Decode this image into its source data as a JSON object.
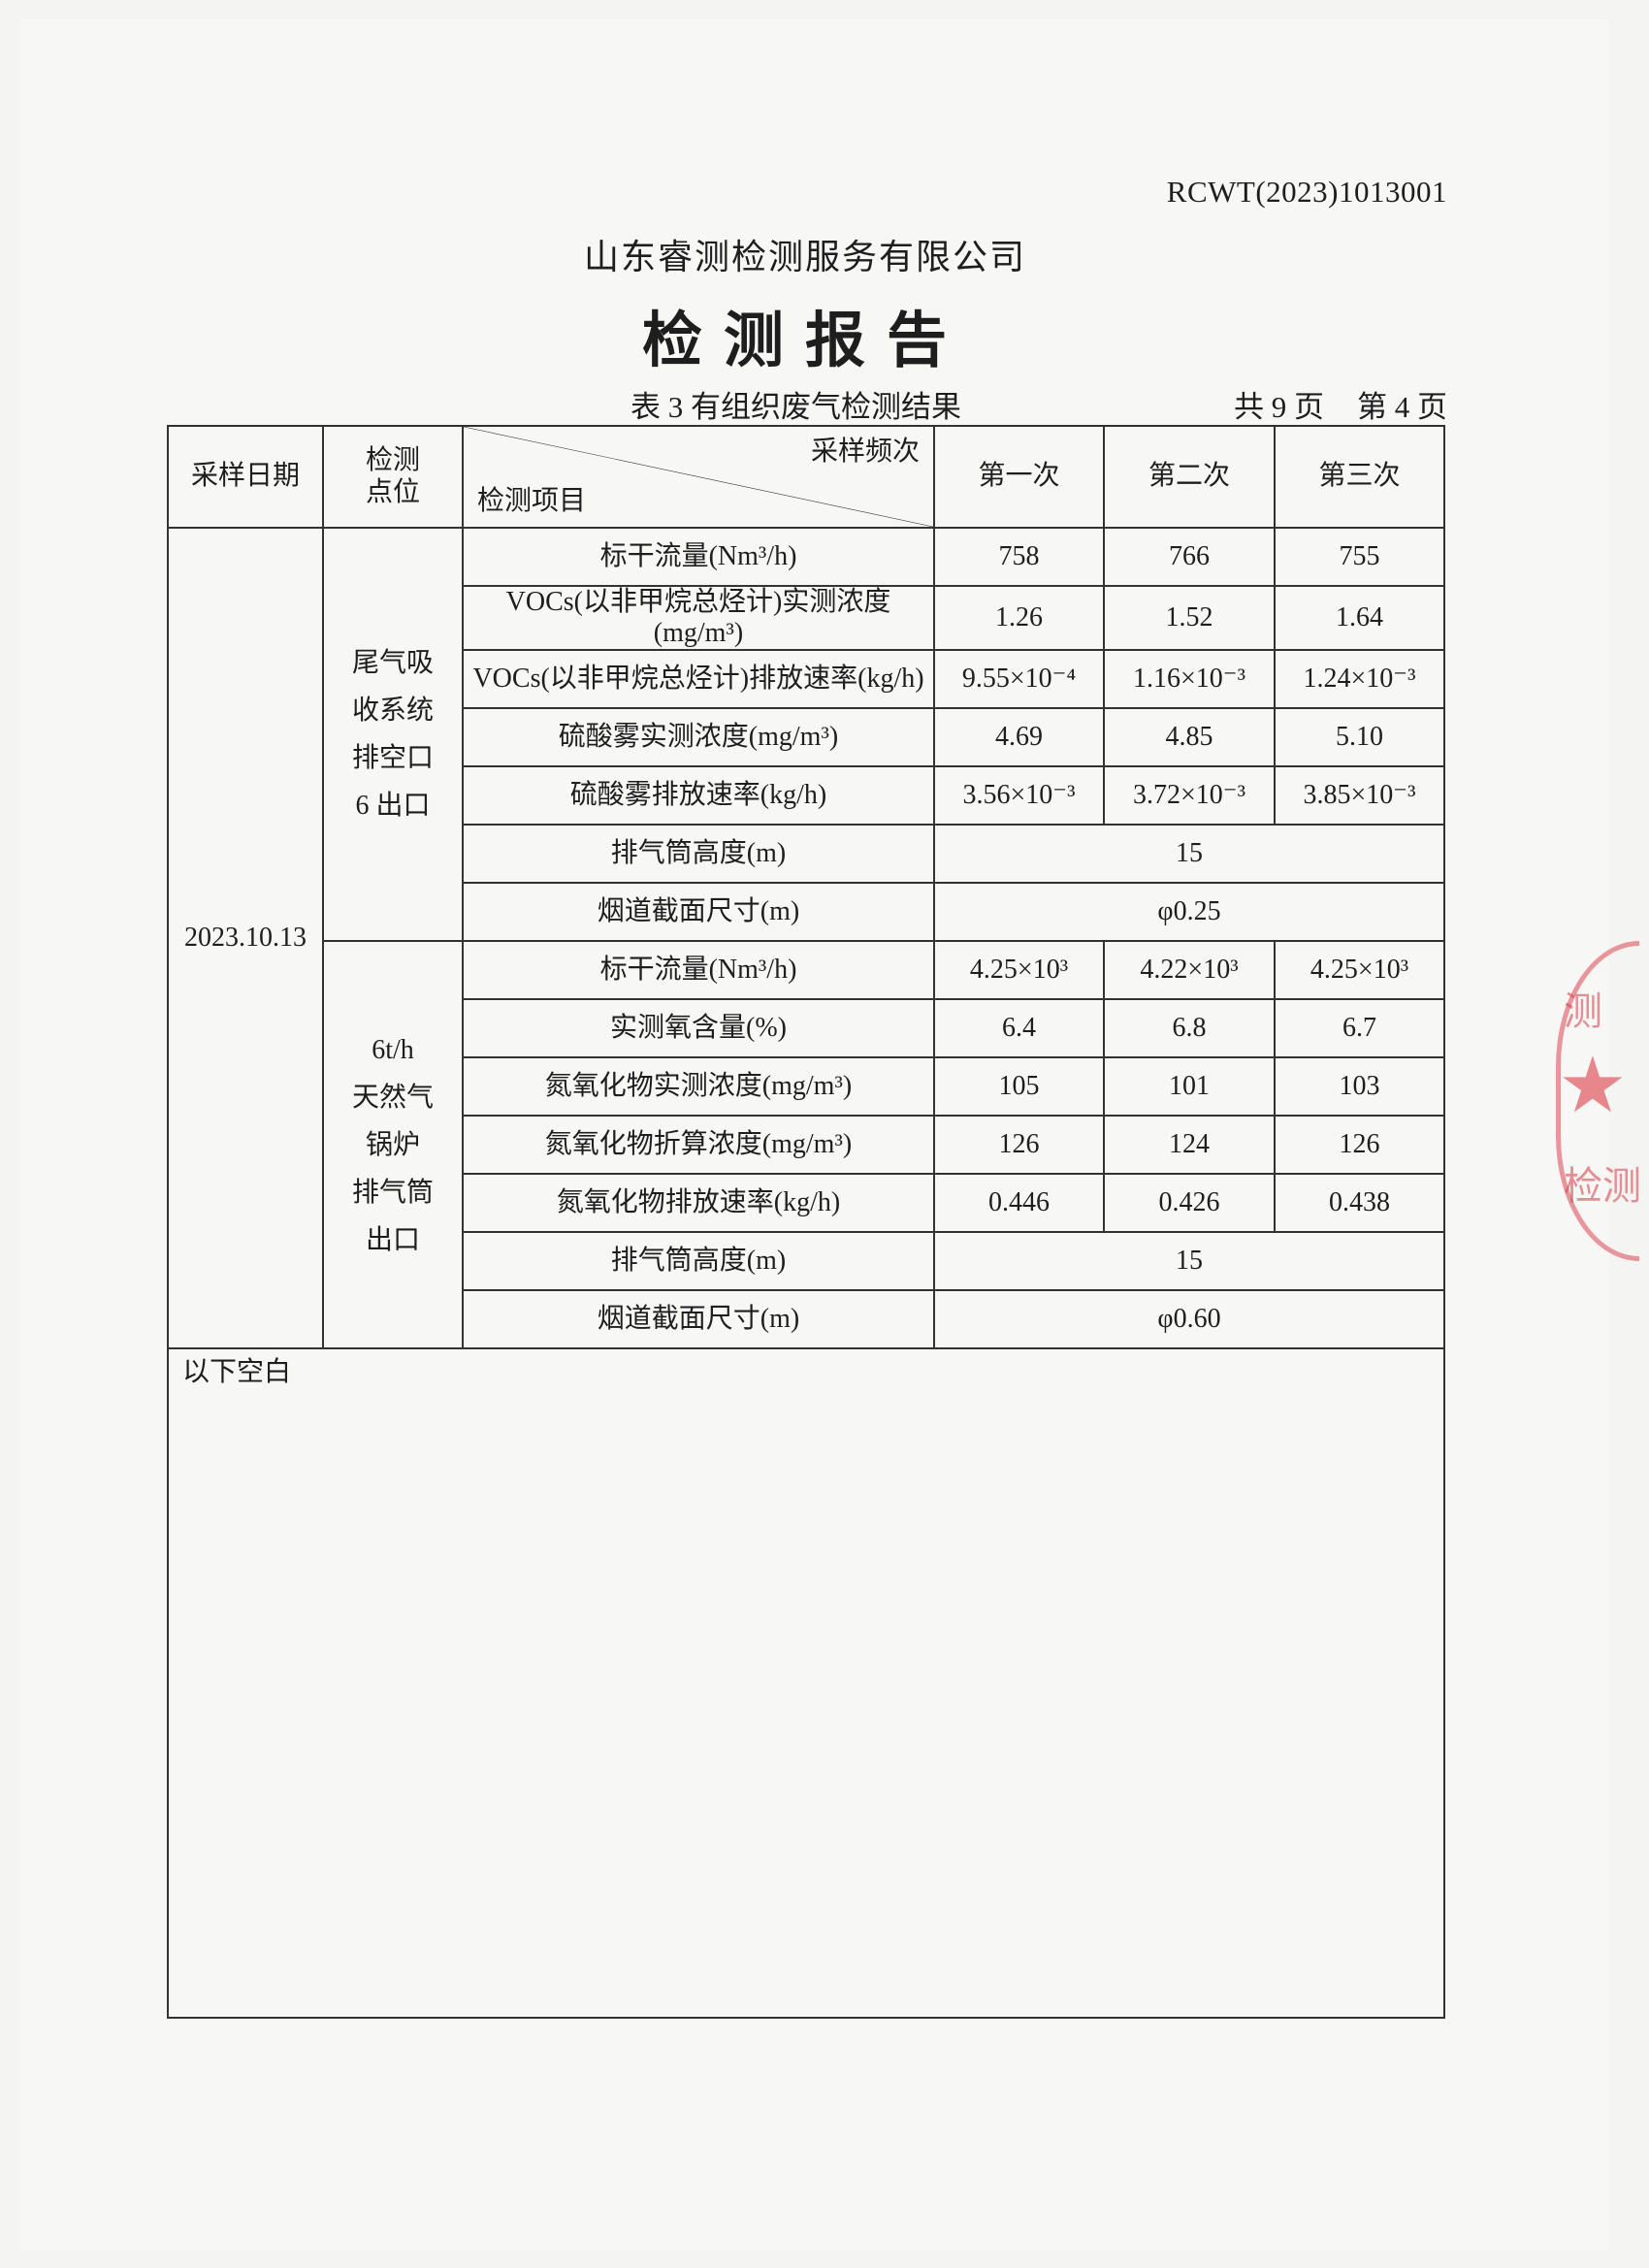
{
  "header": {
    "report_no": "RCWT(2023)1013001",
    "company": "山东睿测检测服务有限公司",
    "title": "检测报告",
    "table_caption": "表 3  有组织废气检测结果",
    "page_total": "共 9 页",
    "page_current": "第 4 页"
  },
  "table": {
    "col_date": "采样日期",
    "col_point": "检测\n点位",
    "col_frequency": "采样频次",
    "col_item": "检测项目",
    "runs": [
      "第一次",
      "第二次",
      "第三次"
    ],
    "date": "2023.10.13",
    "points": [
      {
        "name": "尾气吸\n收系统\n排空口\n6 出口",
        "rows": [
          {
            "item": "标干流量(Nm³/h)",
            "values": [
              "758",
              "766",
              "755"
            ]
          },
          {
            "item": "VOCs(以非甲烷总烃计)实测浓度(mg/m³)",
            "values": [
              "1.26",
              "1.52",
              "1.64"
            ]
          },
          {
            "item": "VOCs(以非甲烷总烃计)排放速率(kg/h)",
            "values": [
              "9.55×10⁻⁴",
              "1.16×10⁻³",
              "1.24×10⁻³"
            ]
          },
          {
            "item": "硫酸雾实测浓度(mg/m³)",
            "values": [
              "4.69",
              "4.85",
              "5.10"
            ]
          },
          {
            "item": "硫酸雾排放速率(kg/h)",
            "values": [
              "3.56×10⁻³",
              "3.72×10⁻³",
              "3.85×10⁻³"
            ]
          },
          {
            "item": "排气筒高度(m)",
            "merged": "15"
          },
          {
            "item": "烟道截面尺寸(m)",
            "merged": "φ0.25"
          }
        ]
      },
      {
        "name": "6t/h\n天然气\n锅炉\n排气筒\n出口",
        "rows": [
          {
            "item": "标干流量(Nm³/h)",
            "values": [
              "4.25×10³",
              "4.22×10³",
              "4.25×10³"
            ]
          },
          {
            "item": "实测氧含量(%)",
            "values": [
              "6.4",
              "6.8",
              "6.7"
            ]
          },
          {
            "item": "氮氧化物实测浓度(mg/m³)",
            "values": [
              "105",
              "101",
              "103"
            ]
          },
          {
            "item": "氮氧化物折算浓度(mg/m³)",
            "values": [
              "126",
              "124",
              "126"
            ]
          },
          {
            "item": "氮氧化物排放速率(kg/h)",
            "values": [
              "0.446",
              "0.426",
              "0.438"
            ]
          },
          {
            "item": "排气筒高度(m)",
            "merged": "15"
          },
          {
            "item": "烟道截面尺寸(m)",
            "merged": "φ0.60"
          }
        ]
      }
    ],
    "footer_note": "以下空白"
  },
  "stamp": {
    "text": [
      "测",
      "检测"
    ],
    "color": "#d94650"
  }
}
